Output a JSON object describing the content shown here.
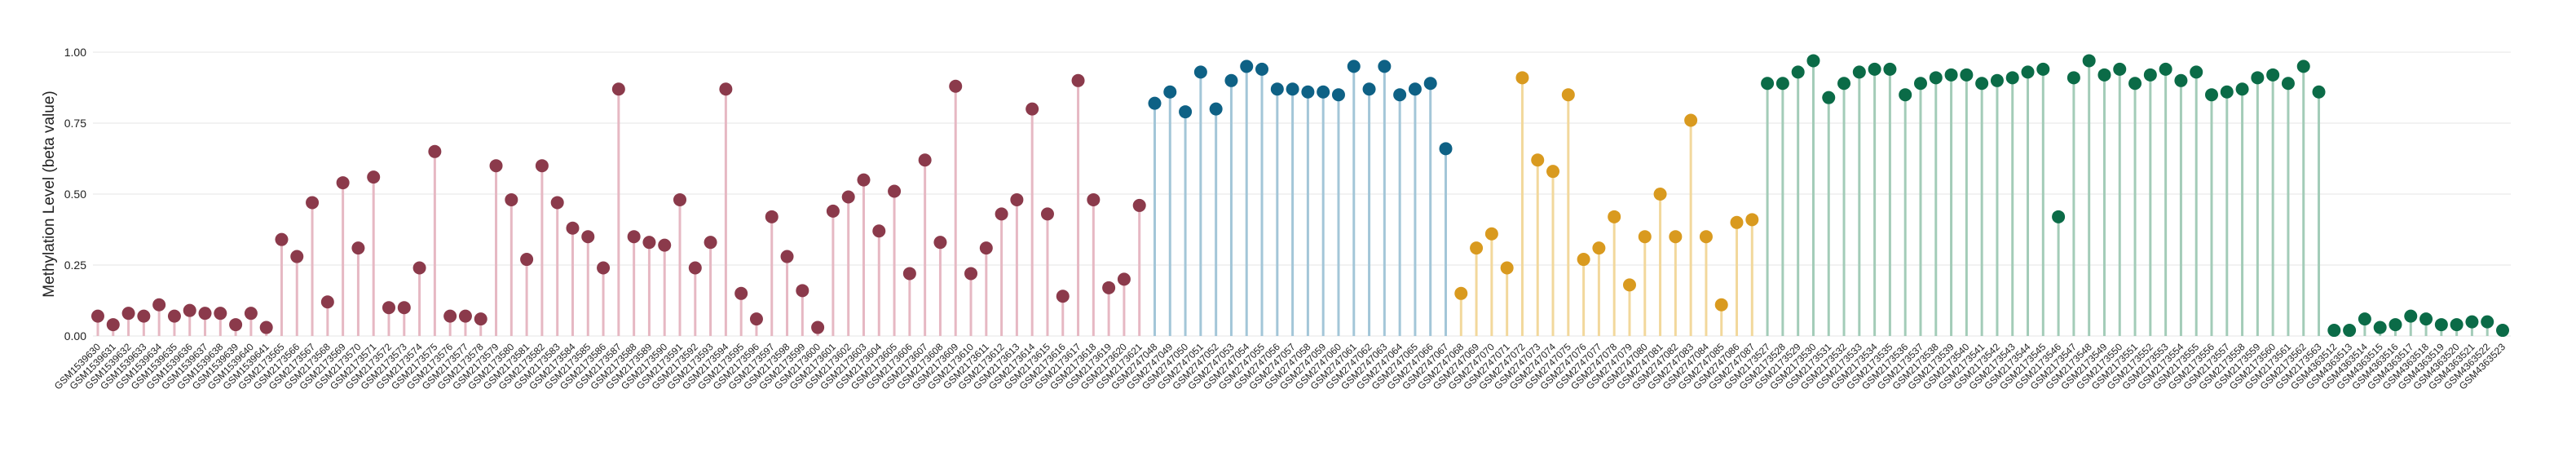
{
  "chart_data": {
    "type": "lollipop",
    "y_label": "Methylation Level (beta value)",
    "ylim": [
      0,
      1.0
    ],
    "yticks": [
      {
        "value": 0,
        "label": "0.00"
      },
      {
        "value": 0.25,
        "label": "0.25"
      },
      {
        "value": 0.5,
        "label": "0.50"
      },
      {
        "value": 0.75,
        "label": "0.75"
      },
      {
        "value": 1.0,
        "label": "1.00"
      }
    ],
    "grid": true,
    "series": [
      {
        "color": "#8b3a4b",
        "stem_color": "#e6b8c3",
        "categories": [
          "GSM1539630",
          "GSM1539631",
          "GSM1539632",
          "GSM1539633",
          "GSM1539634",
          "GSM1539635",
          "GSM1539636",
          "GSM1539637",
          "GSM1539638",
          "GSM1539639",
          "GSM1539640",
          "GSM1539641",
          "GSM2173565",
          "GSM2173566",
          "GSM2173567",
          "GSM2173568",
          "GSM2173569",
          "GSM2173570",
          "GSM2173571",
          "GSM2173572",
          "GSM2173573",
          "GSM2173574",
          "GSM2173575",
          "GSM2173576",
          "GSM2173577",
          "GSM2173578",
          "GSM2173579",
          "GSM2173580",
          "GSM2173581",
          "GSM2173582",
          "GSM2173583",
          "GSM2173584",
          "GSM2173585",
          "GSM2173586",
          "GSM2173587",
          "GSM2173588",
          "GSM2173589",
          "GSM2173590",
          "GSM2173591",
          "GSM2173592",
          "GSM2173593",
          "GSM2173594",
          "GSM2173595",
          "GSM2173596",
          "GSM2173597",
          "GSM2173598",
          "GSM2173599",
          "GSM2173600",
          "GSM2173601",
          "GSM2173602",
          "GSM2173603",
          "GSM2173604",
          "GSM2173605",
          "GSM2173606",
          "GSM2173607",
          "GSM2173608",
          "GSM2173609",
          "GSM2173610",
          "GSM2173611",
          "GSM2173612",
          "GSM2173613",
          "GSM2173614",
          "GSM2173615",
          "GSM2173616",
          "GSM2173617",
          "GSM2173618",
          "GSM2173619",
          "GSM2173620",
          "GSM2173621"
        ],
        "values": [
          0.07,
          0.04,
          0.08,
          0.07,
          0.11,
          0.07,
          0.09,
          0.08,
          0.08,
          0.04,
          0.08,
          0.03,
          0.34,
          0.28,
          0.47,
          0.12,
          0.54,
          0.31,
          0.56,
          0.1,
          0.1,
          0.24,
          0.65,
          0.07,
          0.07,
          0.06,
          0.6,
          0.48,
          0.27,
          0.6,
          0.47,
          0.38,
          0.35,
          0.24,
          0.87,
          0.35,
          0.33,
          0.32,
          0.48,
          0.24,
          0.33,
          0.87,
          0.15,
          0.06,
          0.42,
          0.28,
          0.16,
          0.03,
          0.44,
          0.49,
          0.55,
          0.37,
          0.51,
          0.22,
          0.62,
          0.33,
          0.88,
          0.22,
          0.31,
          0.43,
          0.48,
          0.8,
          0.43,
          0.14,
          0.9,
          0.48,
          0.17,
          0.2,
          0.46
        ]
      },
      {
        "color": "#0e6185",
        "stem_color": "#a3c6d8",
        "categories": [
          "GSM2747048",
          "GSM2747049",
          "GSM2747050",
          "GSM2747051",
          "GSM2747052",
          "GSM2747053",
          "GSM2747054",
          "GSM2747055",
          "GSM2747056",
          "GSM2747057",
          "GSM2747058",
          "GSM2747059",
          "GSM2747060",
          "GSM2747061",
          "GSM2747062",
          "GSM2747063",
          "GSM2747064",
          "GSM2747065",
          "GSM2747066",
          "GSM2747067"
        ],
        "values": [
          0.82,
          0.86,
          0.79,
          0.93,
          0.8,
          0.9,
          0.95,
          0.94,
          0.87,
          0.87,
          0.86,
          0.86,
          0.85,
          0.95,
          0.87,
          0.95,
          0.85,
          0.87,
          0.89,
          0.66
        ]
      },
      {
        "color": "#d99a1f",
        "stem_color": "#f2d89c",
        "categories": [
          "GSM2747068",
          "GSM2747069",
          "GSM2747070",
          "GSM2747071",
          "GSM2747072",
          "GSM2747073",
          "GSM2747074",
          "GSM2747075",
          "GSM2747076",
          "GSM2747077",
          "GSM2747078",
          "GSM2747079",
          "GSM2747080",
          "GSM2747081",
          "GSM2747082",
          "GSM2747083",
          "GSM2747084",
          "GSM2747085",
          "GSM2747086",
          "GSM2747087"
        ],
        "values": [
          0.15,
          0.31,
          0.36,
          0.24,
          0.91,
          0.62,
          0.58,
          0.85,
          0.27,
          0.31,
          0.42,
          0.18,
          0.35,
          0.5,
          0.35,
          0.76,
          0.35,
          0.11,
          0.4,
          0.41
        ]
      },
      {
        "color": "#0b6b47",
        "stem_color": "#a3ccb8",
        "categories": [
          "GSM2173527",
          "GSM2173528",
          "GSM2173529",
          "GSM2173530",
          "GSM2173531",
          "GSM2173532",
          "GSM2173533",
          "GSM2173534",
          "GSM2173535",
          "GSM2173536",
          "GSM2173537",
          "GSM2173538",
          "GSM2173539",
          "GSM2173540",
          "GSM2173541",
          "GSM2173542",
          "GSM2173543",
          "GSM2173544",
          "GSM2173545",
          "GSM2173546",
          "GSM2173547",
          "GSM2173548",
          "GSM2173549",
          "GSM2173550",
          "GSM2173551",
          "GSM2173552",
          "GSM2173553",
          "GSM2173554",
          "GSM2173555",
          "GSM2173556",
          "GSM2173557",
          "GSM2173558",
          "GSM2173559",
          "GSM2173560",
          "GSM2173561",
          "GSM2173562",
          "GSM2173563",
          "GSM4363512",
          "GSM4363513",
          "GSM4363514",
          "GSM4363515",
          "GSM4363516",
          "GSM4363517",
          "GSM4363518",
          "GSM4363519",
          "GSM4363520",
          "GSM4363521",
          "GSM4363522",
          "GSM4363523"
        ],
        "values": [
          0.89,
          0.89,
          0.93,
          0.97,
          0.84,
          0.89,
          0.93,
          0.94,
          0.94,
          0.85,
          0.89,
          0.91,
          0.92,
          0.92,
          0.89,
          0.9,
          0.91,
          0.93,
          0.94,
          0.42,
          0.91,
          0.97,
          0.92,
          0.94,
          0.89,
          0.92,
          0.94,
          0.9,
          0.93,
          0.85,
          0.86,
          0.87,
          0.91,
          0.92,
          0.89,
          0.95,
          0.86,
          0.02,
          0.02,
          0.06,
          0.03,
          0.04,
          0.07,
          0.06,
          0.04,
          0.04,
          0.05,
          0.05,
          0.02
        ]
      }
    ]
  }
}
